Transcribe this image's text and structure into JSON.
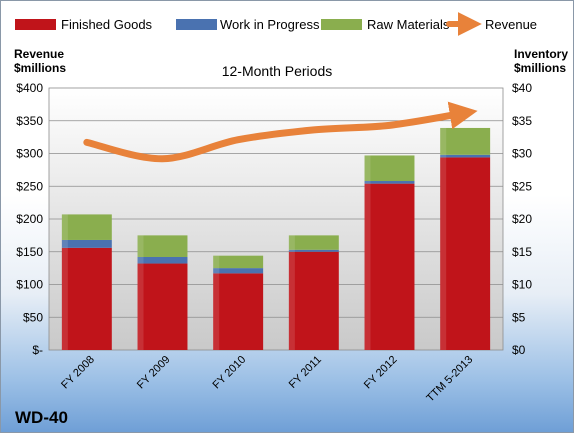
{
  "chart_data": {
    "type": "bar",
    "stacked": true,
    "title": "12-Month Periods",
    "company": "WD-40",
    "left_axis_title": [
      "Revenue",
      "$millions"
    ],
    "right_axis_title": [
      "Inventory",
      "$millions"
    ],
    "categories": [
      "FY 2008",
      "FY 2009",
      "FY 2010",
      "FY 2011",
      "FY 2012",
      "TTM 5-2013"
    ],
    "left_ticks": [
      "$-",
      "$50",
      "$100",
      "$150",
      "$200",
      "$250",
      "$300",
      "$350",
      "$400"
    ],
    "right_ticks": [
      "$0",
      "$5",
      "$10",
      "$15",
      "$20",
      "$25",
      "$30",
      "$35",
      "$40"
    ],
    "ylim_left": [
      0,
      400
    ],
    "ylim_right": [
      0,
      40
    ],
    "grid": true,
    "legend_position": "top",
    "series": [
      {
        "name": "Finished Goods",
        "axis": "right",
        "color": "#c0141a",
        "values": [
          15.6,
          13.2,
          11.7,
          15.0,
          25.4,
          29.4
        ]
      },
      {
        "name": "Work in Progress",
        "axis": "right",
        "color": "#4a72b0",
        "values": [
          1.2,
          1.0,
          0.8,
          0.3,
          0.4,
          0.4
        ]
      },
      {
        "name": "Raw Materials",
        "axis": "right",
        "color": "#8aae4e",
        "values": [
          3.9,
          3.3,
          1.9,
          2.2,
          3.9,
          4.1
        ]
      }
    ],
    "line": {
      "name": "Revenue",
      "axis": "left",
      "color": "#e8823a",
      "values": [
        317,
        292,
        321,
        336,
        343,
        362
      ]
    }
  }
}
